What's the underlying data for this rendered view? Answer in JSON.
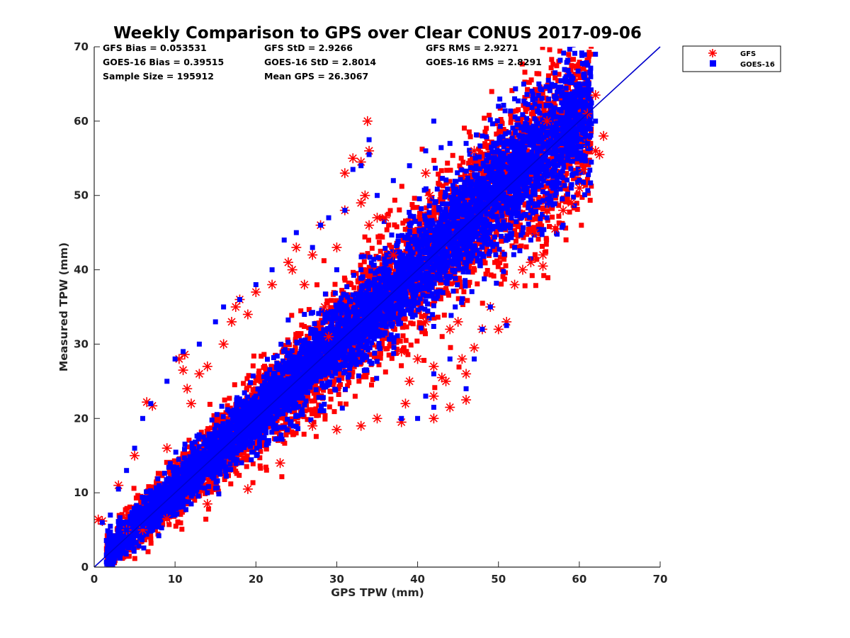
{
  "chart_data": {
    "type": "scatter",
    "title": "Weekly Comparison to GPS over Clear CONUS 2017-09-06",
    "xlabel": "GPS TPW (mm)",
    "ylabel": "Measured TPW (mm)",
    "xlim": [
      0,
      70
    ],
    "ylim": [
      0,
      70
    ],
    "xticks": [
      "0",
      "10",
      "20",
      "30",
      "40",
      "50",
      "60",
      "70"
    ],
    "yticks": [
      "0",
      "10",
      "20",
      "30",
      "40",
      "50",
      "60",
      "70"
    ],
    "grid": false,
    "legend_position": "outside-top-right",
    "reference_line": {
      "x": [
        0,
        70
      ],
      "y": [
        0,
        70
      ],
      "color": "#0000cc"
    },
    "stats": [
      "GFS Bias = 0.053531",
      "GFS StD = 2.9266",
      "GFS RMS = 2.9271",
      "GOES-16 Bias = 0.39515",
      "GOES-16 StD = 2.8014",
      "GOES-16 RMS = 2.8291",
      "Sample Size = 195912",
      "Mean GPS = 26.3067"
    ],
    "series": [
      {
        "name": "GFS",
        "marker": "asterisk",
        "color": "#ff0000",
        "sample_size": 195912,
        "points": [
          [
            0.5,
            6.4
          ],
          [
            1,
            6.2
          ],
          [
            3,
            11
          ],
          [
            5,
            15
          ],
          [
            6.5,
            22.2
          ],
          [
            7.2,
            21.7
          ],
          [
            9,
            16
          ],
          [
            10.5,
            28
          ],
          [
            11,
            26.5
          ],
          [
            11.2,
            28.6
          ],
          [
            11.5,
            24
          ],
          [
            12,
            22
          ],
          [
            13,
            26
          ],
          [
            14,
            27
          ],
          [
            16,
            30
          ],
          [
            17,
            33
          ],
          [
            17.5,
            35
          ],
          [
            18,
            36
          ],
          [
            19,
            34
          ],
          [
            20,
            37
          ],
          [
            22,
            38
          ],
          [
            24,
            41
          ],
          [
            24.5,
            40
          ],
          [
            25,
            43
          ],
          [
            26,
            38
          ],
          [
            27,
            42
          ],
          [
            28,
            46
          ],
          [
            28.5,
            35
          ],
          [
            29,
            31
          ],
          [
            30,
            43
          ],
          [
            31,
            48
          ],
          [
            31,
            53
          ],
          [
            32,
            55
          ],
          [
            33,
            54.5
          ],
          [
            33.5,
            50
          ],
          [
            33.8,
            60
          ],
          [
            34,
            56
          ],
          [
            33,
            49
          ],
          [
            34,
            46
          ],
          [
            35,
            47
          ],
          [
            36,
            47
          ],
          [
            37,
            42
          ],
          [
            38,
            29
          ],
          [
            38,
            19.5
          ],
          [
            38.5,
            22
          ],
          [
            39,
            25
          ],
          [
            40,
            28
          ],
          [
            41,
            33
          ],
          [
            41,
            53
          ],
          [
            41.5,
            50
          ],
          [
            42,
            27
          ],
          [
            42,
            23
          ],
          [
            42,
            20
          ],
          [
            43,
            25.5
          ],
          [
            43.5,
            25
          ],
          [
            44,
            21.5
          ],
          [
            44,
            32
          ],
          [
            45,
            33
          ],
          [
            45.5,
            28
          ],
          [
            46,
            22.5
          ],
          [
            46,
            26
          ],
          [
            47,
            29.5
          ],
          [
            47,
            56
          ],
          [
            48,
            32
          ],
          [
            49,
            35
          ],
          [
            50,
            32
          ],
          [
            51,
            33
          ],
          [
            52,
            38
          ],
          [
            53,
            40
          ],
          [
            54,
            41
          ],
          [
            54.5,
            45
          ],
          [
            55.5,
            42
          ],
          [
            55.5,
            40.5
          ],
          [
            56,
            48
          ],
          [
            57,
            45.5
          ],
          [
            58,
            48
          ],
          [
            59,
            49
          ],
          [
            60,
            51
          ],
          [
            60.5,
            53.5
          ],
          [
            61,
            57
          ],
          [
            62,
            56
          ],
          [
            62.5,
            55.5
          ],
          [
            63,
            58
          ],
          [
            62,
            63.5
          ],
          [
            61,
            61
          ],
          [
            56,
            60
          ],
          [
            19,
            10.5
          ],
          [
            14,
            8.5
          ],
          [
            9,
            6.5
          ],
          [
            6,
            5
          ],
          [
            4,
            5
          ],
          [
            23,
            14
          ],
          [
            27,
            19
          ],
          [
            30,
            18.5
          ],
          [
            33,
            19
          ],
          [
            35,
            20
          ]
        ]
      },
      {
        "name": "GOES-16",
        "marker": "square",
        "color": "#0000ff",
        "sample_size": 195912,
        "points": [
          [
            2,
            7
          ],
          [
            3,
            10.5
          ],
          [
            4,
            13
          ],
          [
            5,
            16
          ],
          [
            6,
            20
          ],
          [
            7,
            22
          ],
          [
            9,
            25
          ],
          [
            10,
            28
          ],
          [
            11,
            29
          ],
          [
            13,
            30
          ],
          [
            15,
            33
          ],
          [
            16,
            35
          ],
          [
            18,
            36
          ],
          [
            20,
            38
          ],
          [
            22,
            40
          ],
          [
            23.5,
            44
          ],
          [
            25,
            45
          ],
          [
            27,
            43
          ],
          [
            28,
            46
          ],
          [
            29,
            47
          ],
          [
            31,
            48
          ],
          [
            32,
            53.5
          ],
          [
            33,
            54
          ],
          [
            34,
            55.5
          ],
          [
            34,
            57.5
          ],
          [
            33,
            40
          ],
          [
            34,
            34
          ],
          [
            36,
            33
          ],
          [
            38,
            20
          ],
          [
            40,
            20
          ],
          [
            41,
            23
          ],
          [
            42,
            26
          ],
          [
            42,
            21.5
          ],
          [
            44,
            28
          ],
          [
            46,
            24
          ],
          [
            47,
            28
          ],
          [
            48,
            32
          ],
          [
            49,
            35
          ],
          [
            51,
            32.5
          ],
          [
            52,
            43
          ],
          [
            53,
            45
          ],
          [
            54,
            44
          ],
          [
            56,
            47
          ],
          [
            57,
            50
          ],
          [
            58,
            46
          ],
          [
            59,
            51
          ],
          [
            60,
            55
          ],
          [
            61,
            57
          ],
          [
            62,
            60
          ],
          [
            62,
            69
          ],
          [
            60,
            65
          ],
          [
            59,
            66
          ],
          [
            57,
            66.5
          ],
          [
            55,
            65
          ],
          [
            52,
            63
          ],
          [
            50,
            62
          ],
          [
            48,
            58
          ],
          [
            46,
            57
          ],
          [
            44,
            57
          ],
          [
            42,
            60
          ],
          [
            41,
            56
          ],
          [
            39,
            54
          ],
          [
            37,
            52
          ],
          [
            35,
            50
          ],
          [
            30,
            40
          ],
          [
            26,
            34
          ],
          [
            22,
            24
          ],
          [
            20,
            20
          ],
          [
            17,
            15
          ],
          [
            14,
            10
          ],
          [
            12,
            8.5
          ],
          [
            10,
            7
          ],
          [
            8,
            6
          ],
          [
            6,
            5.5
          ],
          [
            4,
            5
          ],
          [
            2,
            5.5
          ],
          [
            1,
            6
          ]
        ]
      }
    ]
  }
}
